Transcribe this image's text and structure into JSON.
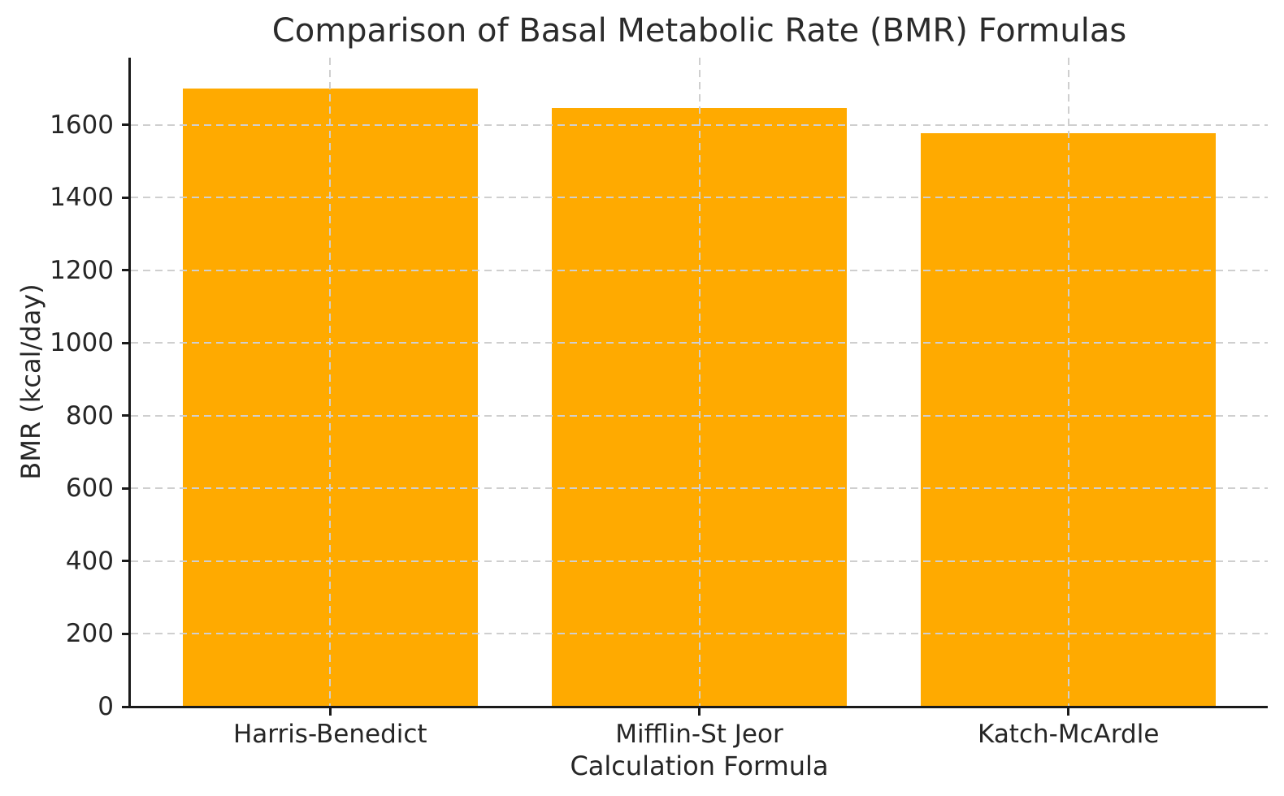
{
  "chart_data": {
    "type": "bar",
    "title": "Comparison of Basal Metabolic Rate (BMR) Formulas",
    "xlabel": "Calculation Formula",
    "ylabel": "BMR (kcal/day)",
    "categories": [
      "Harris-Benedict",
      "Mifflin-St Jeor",
      "Katch-McArdle"
    ],
    "values": [
      1700,
      1646,
      1578
    ],
    "yticks": [
      0,
      200,
      400,
      600,
      800,
      1000,
      1200,
      1400,
      1600
    ],
    "ylim": [
      0,
      1785
    ],
    "xlim": [
      -0.54,
      2.54
    ],
    "bar_width_ratio": 0.8,
    "bar_color": "#FFAA00",
    "grid": true,
    "grid_color": "#cfcfcf",
    "grid_style": "dashed",
    "grid_on_top": true,
    "legend": false,
    "text_color": "#262626",
    "spine_color": "#1a1a1a"
  }
}
